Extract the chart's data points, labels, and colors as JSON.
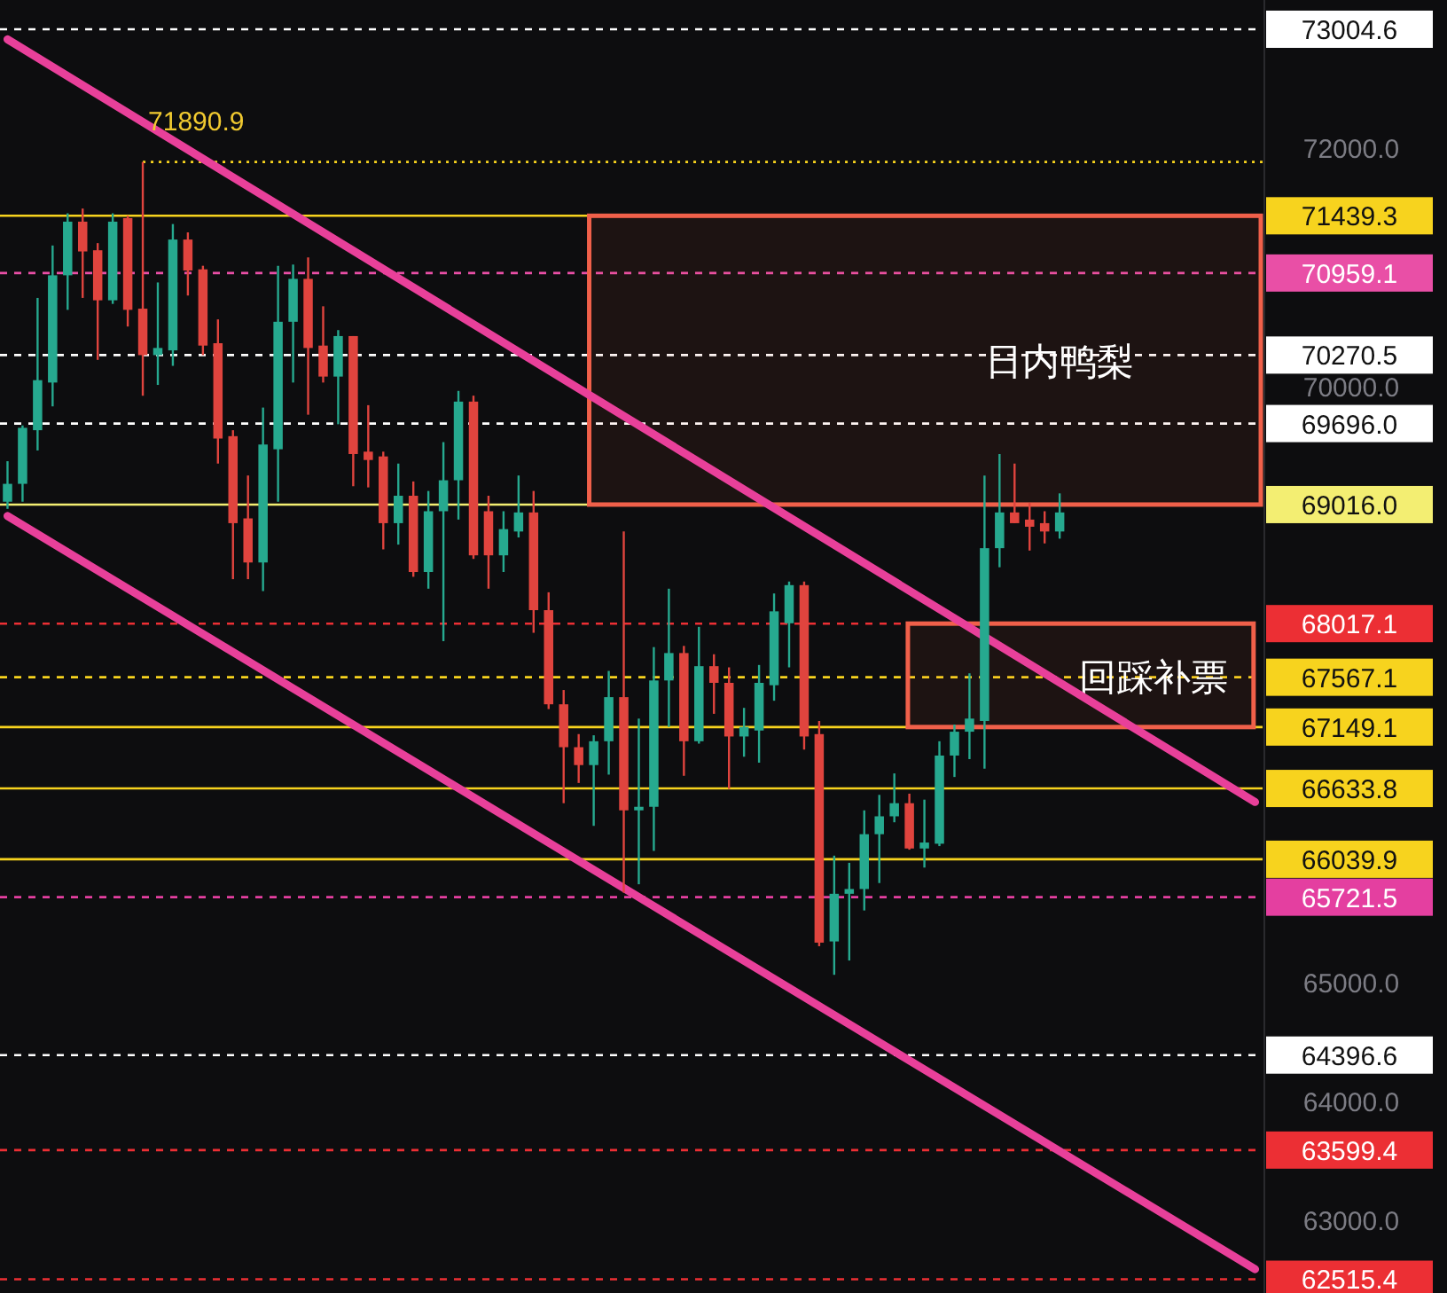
{
  "chart_data": {
    "type": "candlestick",
    "categories": [
      null,
      null,
      null,
      null,
      null,
      null,
      null,
      null,
      null,
      null,
      null,
      null,
      null,
      null,
      null,
      null,
      null,
      null,
      null,
      null,
      null,
      null,
      null,
      null,
      null,
      null,
      null,
      null,
      null,
      null,
      null,
      null,
      null,
      null,
      null,
      null,
      null,
      null,
      null,
      null,
      null,
      null,
      null,
      null,
      null,
      null,
      null,
      null,
      null,
      null,
      null,
      null,
      null,
      null,
      null,
      null,
      null,
      null,
      null,
      null,
      null,
      null,
      null,
      null,
      null,
      null,
      null,
      null,
      null,
      null,
      null,
      null,
      null,
      null,
      null,
      null,
      null,
      null,
      null,
      null,
      null,
      null,
      null,
      null
    ],
    "ohlc": [
      [
        69040,
        69380,
        68980,
        69190
      ],
      [
        69190,
        69680,
        69040,
        69660
      ],
      [
        69640,
        70750,
        69470,
        70060
      ],
      [
        70040,
        71190,
        69840,
        70940
      ],
      [
        70940,
        71460,
        70650,
        71390
      ],
      [
        71390,
        71500,
        70750,
        71140
      ],
      [
        71150,
        71210,
        70230,
        70730
      ],
      [
        70730,
        71460,
        70700,
        71390
      ],
      [
        71420,
        71440,
        70510,
        70650
      ],
      [
        70660,
        71890.9,
        69930,
        70270
      ],
      [
        70270,
        70880,
        70020,
        70330
      ],
      [
        70310,
        71370,
        70180,
        71240
      ],
      [
        71240,
        71300,
        70770,
        70980
      ],
      [
        70990,
        71020,
        70270,
        70350
      ],
      [
        70370,
        70570,
        69360,
        69570
      ],
      [
        69590,
        69640,
        68390,
        68860
      ],
      [
        68900,
        69260,
        68390,
        68530
      ],
      [
        68530,
        69830,
        68290,
        69520
      ],
      [
        69480,
        71020,
        69040,
        70550
      ],
      [
        70550,
        71030,
        70040,
        70910
      ],
      [
        70910,
        71090,
        69770,
        70330
      ],
      [
        70350,
        70680,
        70040,
        70090
      ],
      [
        70090,
        70480,
        69690,
        70430
      ],
      [
        70430,
        70430,
        69170,
        69440
      ],
      [
        69460,
        69850,
        69160,
        69390
      ],
      [
        69420,
        69460,
        68640,
        68860
      ],
      [
        68860,
        69360,
        68680,
        69090
      ],
      [
        69090,
        69210,
        68410,
        68450
      ],
      [
        68450,
        69130,
        68310,
        68960
      ],
      [
        68960,
        69540,
        67870,
        69220
      ],
      [
        69220,
        69970,
        68890,
        69880
      ],
      [
        69880,
        69930,
        68560,
        68590
      ],
      [
        68960,
        69090,
        68310,
        68590
      ],
      [
        68590,
        68960,
        68450,
        68810
      ],
      [
        68790,
        69260,
        68740,
        68950
      ],
      [
        68950,
        69130,
        67940,
        68130
      ],
      [
        68130,
        68280,
        67300,
        67340
      ],
      [
        67340,
        67460,
        66510,
        66980
      ],
      [
        66980,
        67090,
        66680,
        66830
      ],
      [
        66830,
        67080,
        66320,
        67030
      ],
      [
        67030,
        67620,
        66750,
        67400
      ],
      [
        67400,
        68790,
        65760,
        66450
      ],
      [
        66450,
        67220,
        65830,
        66480
      ],
      [
        66480,
        67820,
        66110,
        67540
      ],
      [
        67540,
        68310,
        67150,
        67770
      ],
      [
        67770,
        67830,
        66740,
        67030
      ],
      [
        67030,
        67990,
        67010,
        67660
      ],
      [
        67660,
        67760,
        67260,
        67520
      ],
      [
        67520,
        67650,
        66630,
        67070
      ],
      [
        67070,
        67310,
        66900,
        67150
      ],
      [
        67120,
        67670,
        66850,
        67520
      ],
      [
        67500,
        68270,
        67370,
        68120
      ],
      [
        68020,
        68370,
        67650,
        68340
      ],
      [
        68340,
        68370,
        66960,
        67070
      ],
      [
        67090,
        67200,
        65310,
        65340
      ],
      [
        65350,
        66070,
        65070,
        65750
      ],
      [
        65750,
        66010,
        65190,
        65790
      ],
      [
        65790,
        66450,
        65610,
        66250
      ],
      [
        66250,
        66580,
        65840,
        66400
      ],
      [
        66400,
        66760,
        66350,
        66510
      ],
      [
        66510,
        66590,
        66120,
        66130
      ],
      [
        66130,
        66540,
        65970,
        66180
      ],
      [
        66170,
        67030,
        66150,
        66910
      ],
      [
        66910,
        67170,
        66730,
        67110
      ],
      [
        67110,
        67600,
        66880,
        67220
      ],
      [
        67200,
        69260,
        66800,
        68650
      ],
      [
        68650,
        69440,
        68490,
        68950
      ],
      [
        68950,
        69360,
        68860,
        68860
      ],
      [
        68890,
        69030,
        68630,
        68830
      ],
      [
        68860,
        68960,
        68690,
        68790
      ],
      [
        68790,
        69110,
        68730,
        68950
      ],
      null,
      null,
      null,
      null,
      null,
      null,
      null,
      null,
      null,
      null,
      null,
      null,
      null
    ],
    "ylim": [
      62400,
      73250
    ],
    "yticks": [
      {
        "value": 63000,
        "label": "63000.0"
      },
      {
        "value": 64000,
        "label": "64000.0"
      },
      {
        "value": 65000,
        "label": "65000.0"
      },
      {
        "value": 70000,
        "label": "70000.0"
      },
      {
        "value": 72000,
        "label": "72000.0"
      }
    ],
    "series": [
      {
        "type": "line",
        "color": "#e8409a",
        "values": [
          72920,
          null,
          null,
          null,
          null,
          null,
          null,
          null,
          null,
          null,
          null,
          null,
          null,
          null,
          null,
          null,
          null,
          null,
          null,
          null,
          null,
          null,
          null,
          null,
          null,
          null,
          null,
          null,
          null,
          null,
          null,
          null,
          null,
          null,
          null,
          null,
          null,
          null,
          null,
          null,
          null,
          null,
          null,
          null,
          null,
          null,
          null,
          null,
          null,
          null,
          null,
          null,
          null,
          null,
          null,
          null,
          null,
          null,
          null,
          null,
          null,
          null,
          null,
          null,
          null,
          null,
          null,
          null,
          null,
          null,
          null,
          null,
          null,
          null,
          null,
          null,
          null,
          null,
          null,
          null,
          null,
          null,
          null,
          66520
        ]
      },
      {
        "type": "line",
        "color": "#e8409a",
        "values": [
          68920,
          null,
          null,
          null,
          null,
          null,
          null,
          null,
          null,
          null,
          null,
          null,
          null,
          null,
          null,
          null,
          null,
          null,
          null,
          null,
          null,
          null,
          null,
          null,
          null,
          null,
          null,
          null,
          null,
          null,
          null,
          null,
          null,
          null,
          null,
          null,
          null,
          null,
          null,
          null,
          null,
          null,
          null,
          null,
          null,
          null,
          null,
          null,
          null,
          null,
          null,
          null,
          null,
          null,
          null,
          null,
          null,
          null,
          null,
          null,
          null,
          null,
          null,
          null,
          null,
          null,
          null,
          null,
          null,
          null,
          null,
          null,
          null,
          null,
          null,
          null,
          null,
          null,
          null,
          null,
          null,
          null,
          null,
          62600
        ]
      }
    ],
    "ref_lines": [
      {
        "axis": "y",
        "value": 73004.6,
        "label": "73004.6",
        "color": "#ffffff",
        "line_style": "dashed"
      },
      {
        "axis": "y",
        "value": 71890.9,
        "label": "71890.9",
        "color": "#f7d31e",
        "line_style": "dotted"
      },
      {
        "axis": "y",
        "value": 71439.3,
        "label": "71439.3",
        "color": "#f7d31e",
        "line_style": "solid"
      },
      {
        "axis": "y",
        "value": 70959.1,
        "label": "70959.1",
        "color": "#e94fa6",
        "line_style": "dashed"
      },
      {
        "axis": "y",
        "value": 70270.5,
        "label": "70270.5",
        "color": "#ffffff",
        "line_style": "dashed"
      },
      {
        "axis": "y",
        "value": 69696.0,
        "label": "69696.0",
        "color": "#ffffff",
        "line_style": "dashed"
      },
      {
        "axis": "y",
        "value": 69016.0,
        "label": "69016.0",
        "color": "#f3ee72",
        "line_style": "solid"
      },
      {
        "axis": "y",
        "value": 68017.1,
        "label": "68017.1",
        "color": "#ec2f34",
        "line_style": "dashed"
      },
      {
        "axis": "y",
        "value": 67567.1,
        "label": "67567.1",
        "color": "#f7d31e",
        "line_style": "dashed"
      },
      {
        "axis": "y",
        "value": 67149.1,
        "label": "67149.1",
        "color": "#f7d31e",
        "line_style": "solid"
      },
      {
        "axis": "y",
        "value": 66633.8,
        "label": "66633.8",
        "color": "#f7d31e",
        "line_style": "solid"
      },
      {
        "axis": "y",
        "value": 66039.9,
        "label": "66039.9",
        "color": "#f7d31e",
        "line_style": "solid"
      },
      {
        "axis": "y",
        "value": 65721.5,
        "label": "65721.5",
        "color": "#e43fa0",
        "line_style": "dashed"
      },
      {
        "axis": "y",
        "value": 64396.6,
        "label": "64396.6",
        "color": "#ffffff",
        "line_style": "dashed"
      },
      {
        "axis": "y",
        "value": 63599.4,
        "label": "63599.4",
        "color": "#ec2f34",
        "line_style": "dashed"
      },
      {
        "axis": "y",
        "value": 62515.4,
        "label": "62515.4",
        "color": "#ec2f34",
        "line_style": "dashed"
      }
    ],
    "bands": [
      {
        "axis": "y",
        "from": 69016.0,
        "to": 71439.3,
        "label": "日内鸭梨",
        "color": "#f0604a"
      },
      {
        "axis": "y",
        "from": 67149.1,
        "to": 68017.1,
        "label": "回踩补票",
        "color": "#f0604a"
      }
    ]
  }
}
